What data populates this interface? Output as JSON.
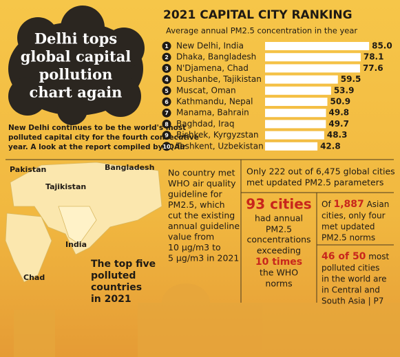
{
  "headline": [
    "Delhi tops",
    "global capital",
    "pollution",
    "chart again"
  ],
  "intro": [
    "New Delhi continues to be the world's most",
    "polluted capital city for the fourth consecutive",
    "year. A look at the report compiled by IQAir"
  ],
  "chart_data": {
    "type": "bar",
    "orientation": "horizontal",
    "title": "2021 CAPITAL CITY RANKING",
    "subtitle": "Average annual PM2.5 concentration in the year",
    "ranks": [
      "1",
      "2",
      "3",
      "4",
      "5",
      "6",
      "7",
      "8",
      "9",
      "10"
    ],
    "categories": [
      "New Delhi, India",
      "Dhaka, Bangladesh",
      "N'Djamena, Chad",
      "Dushanbe, Tajikistan",
      "Muscat, Oman",
      "Kathmandu, Nepal",
      "Manama, Bahrain",
      "Baghdad, Iraq",
      "Bishkek, Kyrgyzstan",
      "Tashkent, Uzbekistan"
    ],
    "values": [
      85.0,
      78.1,
      77.6,
      59.5,
      53.9,
      50.9,
      49.8,
      49.7,
      48.3,
      42.8
    ],
    "value_labels": [
      "85.0",
      "78.1",
      "77.6",
      "59.5",
      "53.9",
      "50.9",
      "49.8",
      "49.7",
      "48.3",
      "42.8"
    ],
    "color": "#ffffff",
    "xlim": [
      0,
      90
    ]
  },
  "map": {
    "labels": [
      "Pakistan",
      "Bangladesh",
      "Tajikistan",
      "India",
      "Chad"
    ],
    "caption": [
      "The top five",
      "polluted",
      "countries",
      "in 2021"
    ]
  },
  "who_note": [
    "No country met",
    "WHO air quality",
    "guideline for",
    "PM2.5, which",
    "cut the existing",
    "annual guideline",
    "value from",
    "10 µg/m3 to",
    "5 µg/m3 in 2021"
  ],
  "cities_note": [
    "Only 222 out of 6,475 global cities",
    "met updated PM2.5 parameters"
  ],
  "exceed_box": {
    "highlight": "93 cities",
    "lines": [
      "had annual",
      "PM2.5",
      "concentrations",
      "exceeding"
    ],
    "highlight2": "10 times",
    "lines2": [
      "the WHO",
      "norms"
    ]
  },
  "asian_box": {
    "prefix": "Of ",
    "highlight": "1,887",
    "suffix": " Asian",
    "lines": [
      "cities, only four",
      "met updated",
      "PM2.5 norms"
    ]
  },
  "region_box": {
    "highlight": "46 of 50",
    "suffix": " most",
    "lines": [
      "polluted cities",
      "in the world are",
      "in Central and",
      "South Asia | P7"
    ]
  }
}
